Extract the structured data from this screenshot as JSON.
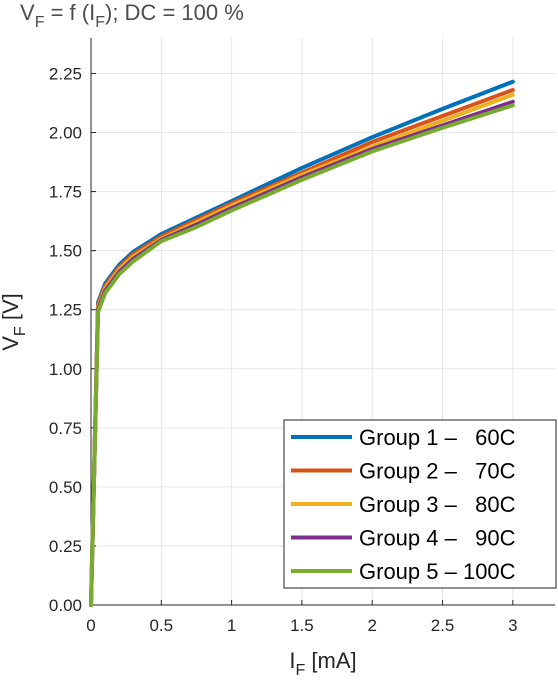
{
  "chart_data": {
    "type": "line",
    "title": {
      "v": "V",
      "v_sub": "F",
      "mid": " = f (I",
      "i_sub": "F",
      "rest": "); DC = 100 %"
    },
    "xlabel": {
      "main": "I",
      "sub": "F",
      "unit": " [mA]"
    },
    "ylabel": {
      "main": "V",
      "sub": "F",
      "unit": " [V]"
    },
    "xlim": [
      0,
      3.3
    ],
    "ylim": [
      0,
      2.4
    ],
    "xticks": [
      0,
      0.5,
      1,
      1.5,
      2,
      2.5,
      3
    ],
    "xtick_labels": [
      "0",
      "0.5",
      "1",
      "1.5",
      "2",
      "2.5",
      "3"
    ],
    "yticks": [
      0,
      0.25,
      0.5,
      0.75,
      1.0,
      1.25,
      1.5,
      1.75,
      2.0,
      2.25
    ],
    "ytick_labels": [
      "0.00",
      "0.25",
      "0.50",
      "0.75",
      "1.00",
      "1.25",
      "1.50",
      "1.75",
      "2.00",
      "2.25"
    ],
    "grid": true,
    "legend_position": "bottom-right",
    "x": [
      0,
      0.05,
      0.1,
      0.2,
      0.3,
      0.5,
      0.75,
      1.0,
      1.5,
      2.0,
      2.5,
      3.0
    ],
    "series": [
      {
        "name": "Group 1 –   60C",
        "color": "#0072BD",
        "values": [
          0.0,
          1.28,
          1.36,
          1.44,
          1.495,
          1.57,
          1.64,
          1.71,
          1.85,
          1.98,
          2.1,
          2.215
        ]
      },
      {
        "name": "Group 2 –   70C",
        "color": "#D95319",
        "values": [
          0.0,
          1.27,
          1.35,
          1.43,
          1.485,
          1.56,
          1.63,
          1.7,
          1.83,
          1.96,
          2.07,
          2.18
        ]
      },
      {
        "name": "Group 3 –   80C",
        "color": "#EDB120",
        "values": [
          0.0,
          1.26,
          1.34,
          1.42,
          1.475,
          1.55,
          1.62,
          1.69,
          1.82,
          1.94,
          2.05,
          2.16
        ]
      },
      {
        "name": "Group 4 –   90C",
        "color": "#7E2F8E",
        "values": [
          0.0,
          1.25,
          1.33,
          1.41,
          1.465,
          1.545,
          1.61,
          1.68,
          1.81,
          1.93,
          2.03,
          2.13
        ]
      },
      {
        "name": "Group 5 – 100C",
        "color": "#77AC30",
        "values": [
          0.0,
          1.24,
          1.32,
          1.4,
          1.455,
          1.54,
          1.6,
          1.67,
          1.8,
          1.92,
          2.02,
          2.115
        ]
      }
    ]
  }
}
